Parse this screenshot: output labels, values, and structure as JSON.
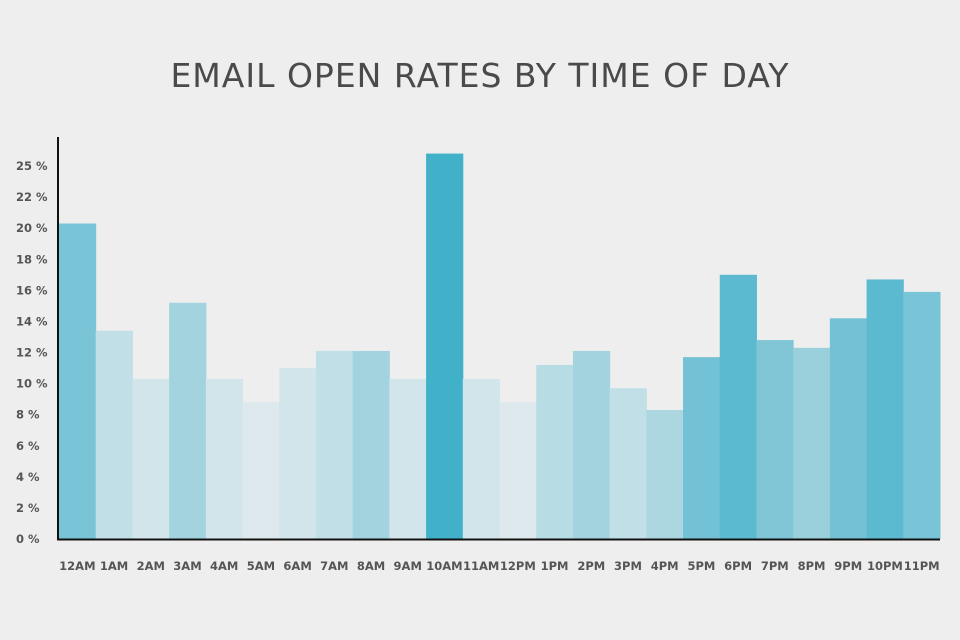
{
  "chart_data": {
    "type": "bar",
    "title": "EMAIL OPEN RATES BY TIME OF DAY",
    "xlabel": "",
    "ylabel": "",
    "ylim": [
      0,
      24
    ],
    "grid": false,
    "y_tick_labels": [
      "0 %",
      "2 %",
      "4 %",
      "6 %",
      "8 %",
      "10 %",
      "12 %",
      "14 %",
      "16 %",
      "18 %",
      "20 %",
      "22 %",
      "25 %"
    ],
    "categories": [
      "12AM",
      "1AM",
      "2AM",
      "3AM",
      "4AM",
      "5AM",
      "6AM",
      "7AM",
      "8AM",
      "9AM",
      "10AM",
      "11AM",
      "12PM",
      "1PM",
      "2PM",
      "3PM",
      "4PM",
      "5PM",
      "6PM",
      "7PM",
      "8PM",
      "9PM",
      "10PM",
      "11PM"
    ],
    "values": [
      20.3,
      13.4,
      10.3,
      15.2,
      10.3,
      8.8,
      11.0,
      12.1,
      12.1,
      10.3,
      24.8,
      10.3,
      8.8,
      11.2,
      12.1,
      9.7,
      8.3,
      11.7,
      17.0,
      12.8,
      12.3,
      14.2,
      16.7,
      15.9
    ],
    "colors": [
      "#79c4d6",
      "#c0dfe6",
      "#d2e5ea",
      "#a2d3de",
      "#d2e5ea",
      "#dde9ed",
      "#d2e5ea",
      "#c0dfe6",
      "#a2d3de",
      "#d2e5ea",
      "#41b1ca",
      "#d2e5ea",
      "#dde9ed",
      "#b8dce4",
      "#a2d3de",
      "#c0dfe6",
      "#acd7e0",
      "#72c1d4",
      "#5cbad0",
      "#80c6d7",
      "#9ad0dc",
      "#72c1d4",
      "#5cbad0",
      "#79c4d6"
    ]
  }
}
